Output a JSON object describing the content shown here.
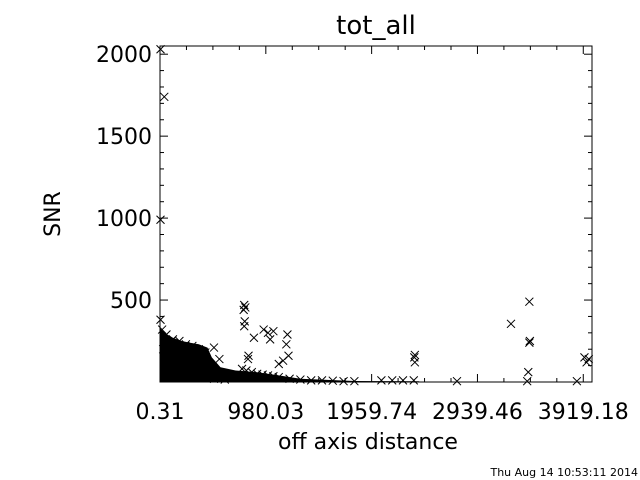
{
  "chart_data": {
    "type": "scatter",
    "title": "tot_all",
    "xlabel": "off axis distance",
    "ylabel": "SNR",
    "xlim": [
      0.31,
      4000
    ],
    "ylim": [
      0,
      2050
    ],
    "x_ticks": [
      0.31,
      980.03,
      1959.74,
      2939.46,
      3919.18
    ],
    "x_tick_labels": [
      "0.31",
      "980.03",
      "1959.74",
      "2939.46",
      "3919.18"
    ],
    "y_ticks": [
      500,
      1000,
      1500,
      2000
    ],
    "y_tick_labels": [
      "500",
      "1000",
      "1500",
      "2000"
    ],
    "grid": false,
    "marker": "x",
    "series": [
      {
        "values": [
          [
            5,
            2030
          ],
          [
            40,
            1740
          ],
          [
            5,
            990
          ],
          [
            5,
            380
          ],
          [
            20,
            320
          ],
          [
            60,
            290
          ],
          [
            120,
            260
          ],
          [
            180,
            250
          ],
          [
            240,
            230
          ],
          [
            300,
            220
          ],
          [
            360,
            200
          ],
          [
            420,
            180
          ],
          [
            500,
            210
          ],
          [
            550,
            140
          ],
          [
            30,
            200
          ],
          [
            80,
            180
          ],
          [
            140,
            170
          ],
          [
            200,
            160
          ],
          [
            260,
            150
          ],
          [
            320,
            140
          ],
          [
            380,
            120
          ],
          [
            440,
            110
          ],
          [
            50,
            100
          ],
          [
            150,
            90
          ],
          [
            250,
            80
          ],
          [
            350,
            70
          ],
          [
            450,
            60
          ],
          [
            100,
            50
          ],
          [
            200,
            40
          ],
          [
            300,
            30
          ],
          [
            400,
            25
          ],
          [
            500,
            20
          ],
          [
            600,
            15
          ],
          [
            780,
            470
          ],
          [
            790,
            455
          ],
          [
            775,
            440
          ],
          [
            785,
            370
          ],
          [
            780,
            340
          ],
          [
            820,
            160
          ],
          [
            815,
            140
          ],
          [
            760,
            80
          ],
          [
            800,
            70
          ],
          [
            850,
            60
          ],
          [
            900,
            50
          ],
          [
            950,
            45
          ],
          [
            1000,
            40
          ],
          [
            1050,
            35
          ],
          [
            1100,
            30
          ],
          [
            870,
            270
          ],
          [
            960,
            320
          ],
          [
            1000,
            300
          ],
          [
            1050,
            310
          ],
          [
            1020,
            260
          ],
          [
            1180,
            290
          ],
          [
            1170,
            230
          ],
          [
            1190,
            160
          ],
          [
            1140,
            130
          ],
          [
            1100,
            110
          ],
          [
            1200,
            20
          ],
          [
            1300,
            15
          ],
          [
            1400,
            10
          ],
          [
            1500,
            10
          ],
          [
            1600,
            8
          ],
          [
            1700,
            5
          ],
          [
            1800,
            5
          ],
          [
            2050,
            10
          ],
          [
            2150,
            10
          ],
          [
            2250,
            10
          ],
          [
            2350,
            10
          ],
          [
            2360,
            165
          ],
          [
            2355,
            150
          ],
          [
            2360,
            120
          ],
          [
            2750,
            5
          ],
          [
            3250,
            355
          ],
          [
            3420,
            490
          ],
          [
            3425,
            250
          ],
          [
            3420,
            240
          ],
          [
            3410,
            60
          ],
          [
            3400,
            5
          ],
          [
            3860,
            5
          ],
          [
            3930,
            150
          ],
          [
            3950,
            120
          ],
          [
            3970,
            140
          ]
        ]
      }
    ]
  },
  "footer": {
    "timestamp": "Thu Aug 14 10:53:11 2014"
  }
}
